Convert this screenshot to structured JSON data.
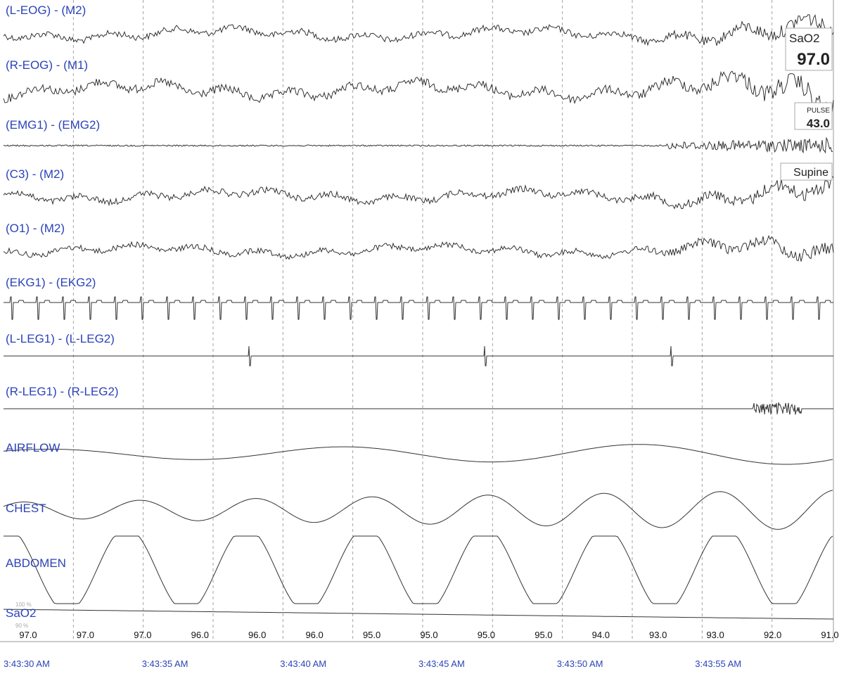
{
  "chart_data": {
    "type": "line",
    "channels": [
      {
        "label": "(L-EOG) - (M2)",
        "signal": "eog-left"
      },
      {
        "label": "(R-EOG) - (M1)",
        "signal": "eog-right"
      },
      {
        "label": "(EMG1) - (EMG2)",
        "signal": "emg"
      },
      {
        "label": "(C3) - (M2)",
        "signal": "eeg"
      },
      {
        "label": "(O1) - (M2)",
        "signal": "eeg"
      },
      {
        "label": "(EKG1) - (EKG2)",
        "signal": "ekg"
      },
      {
        "label": "(L-LEG1) - (L-LEG2)",
        "signal": "leg-left"
      },
      {
        "label": "(R-LEG1) - (R-LEG2)",
        "signal": "leg-right"
      },
      {
        "label": "AIRFLOW",
        "signal": "airflow"
      },
      {
        "label": "CHEST",
        "signal": "chest"
      },
      {
        "label": "ABDOMEN",
        "signal": "abdomen"
      },
      {
        "label": "SaO2",
        "signal": "sao2"
      }
    ],
    "sao2_values": [
      "97.0",
      "97.0",
      "97.0",
      "96.0",
      "96.0",
      "96.0",
      "95.0",
      "95.0",
      "95.0",
      "95.0",
      "94.0",
      "93.0",
      "93.0",
      "92.0",
      "91.0"
    ],
    "time_labels": [
      "3:43:30 AM",
      "3:43:35 AM",
      "3:43:40 AM",
      "3:43:45 AM",
      "3:43:50 AM",
      "3:43:55 AM"
    ],
    "time_label_seconds": [
      0,
      5,
      10,
      15,
      20,
      25
    ],
    "x_range_seconds": [
      0,
      30
    ],
    "gridlines_dashed": true,
    "sao2_scale_labels": [
      "100 %",
      "90 %"
    ]
  },
  "indicators": {
    "sao2": {
      "label": "SaO2",
      "value": "97.0"
    },
    "pulse": {
      "label": "PULSE",
      "value": "43.0"
    },
    "position": {
      "label": "Supine"
    }
  },
  "colors": {
    "label": "#2b43b8",
    "trace": "#333333",
    "grid": "#8a8a8a"
  }
}
